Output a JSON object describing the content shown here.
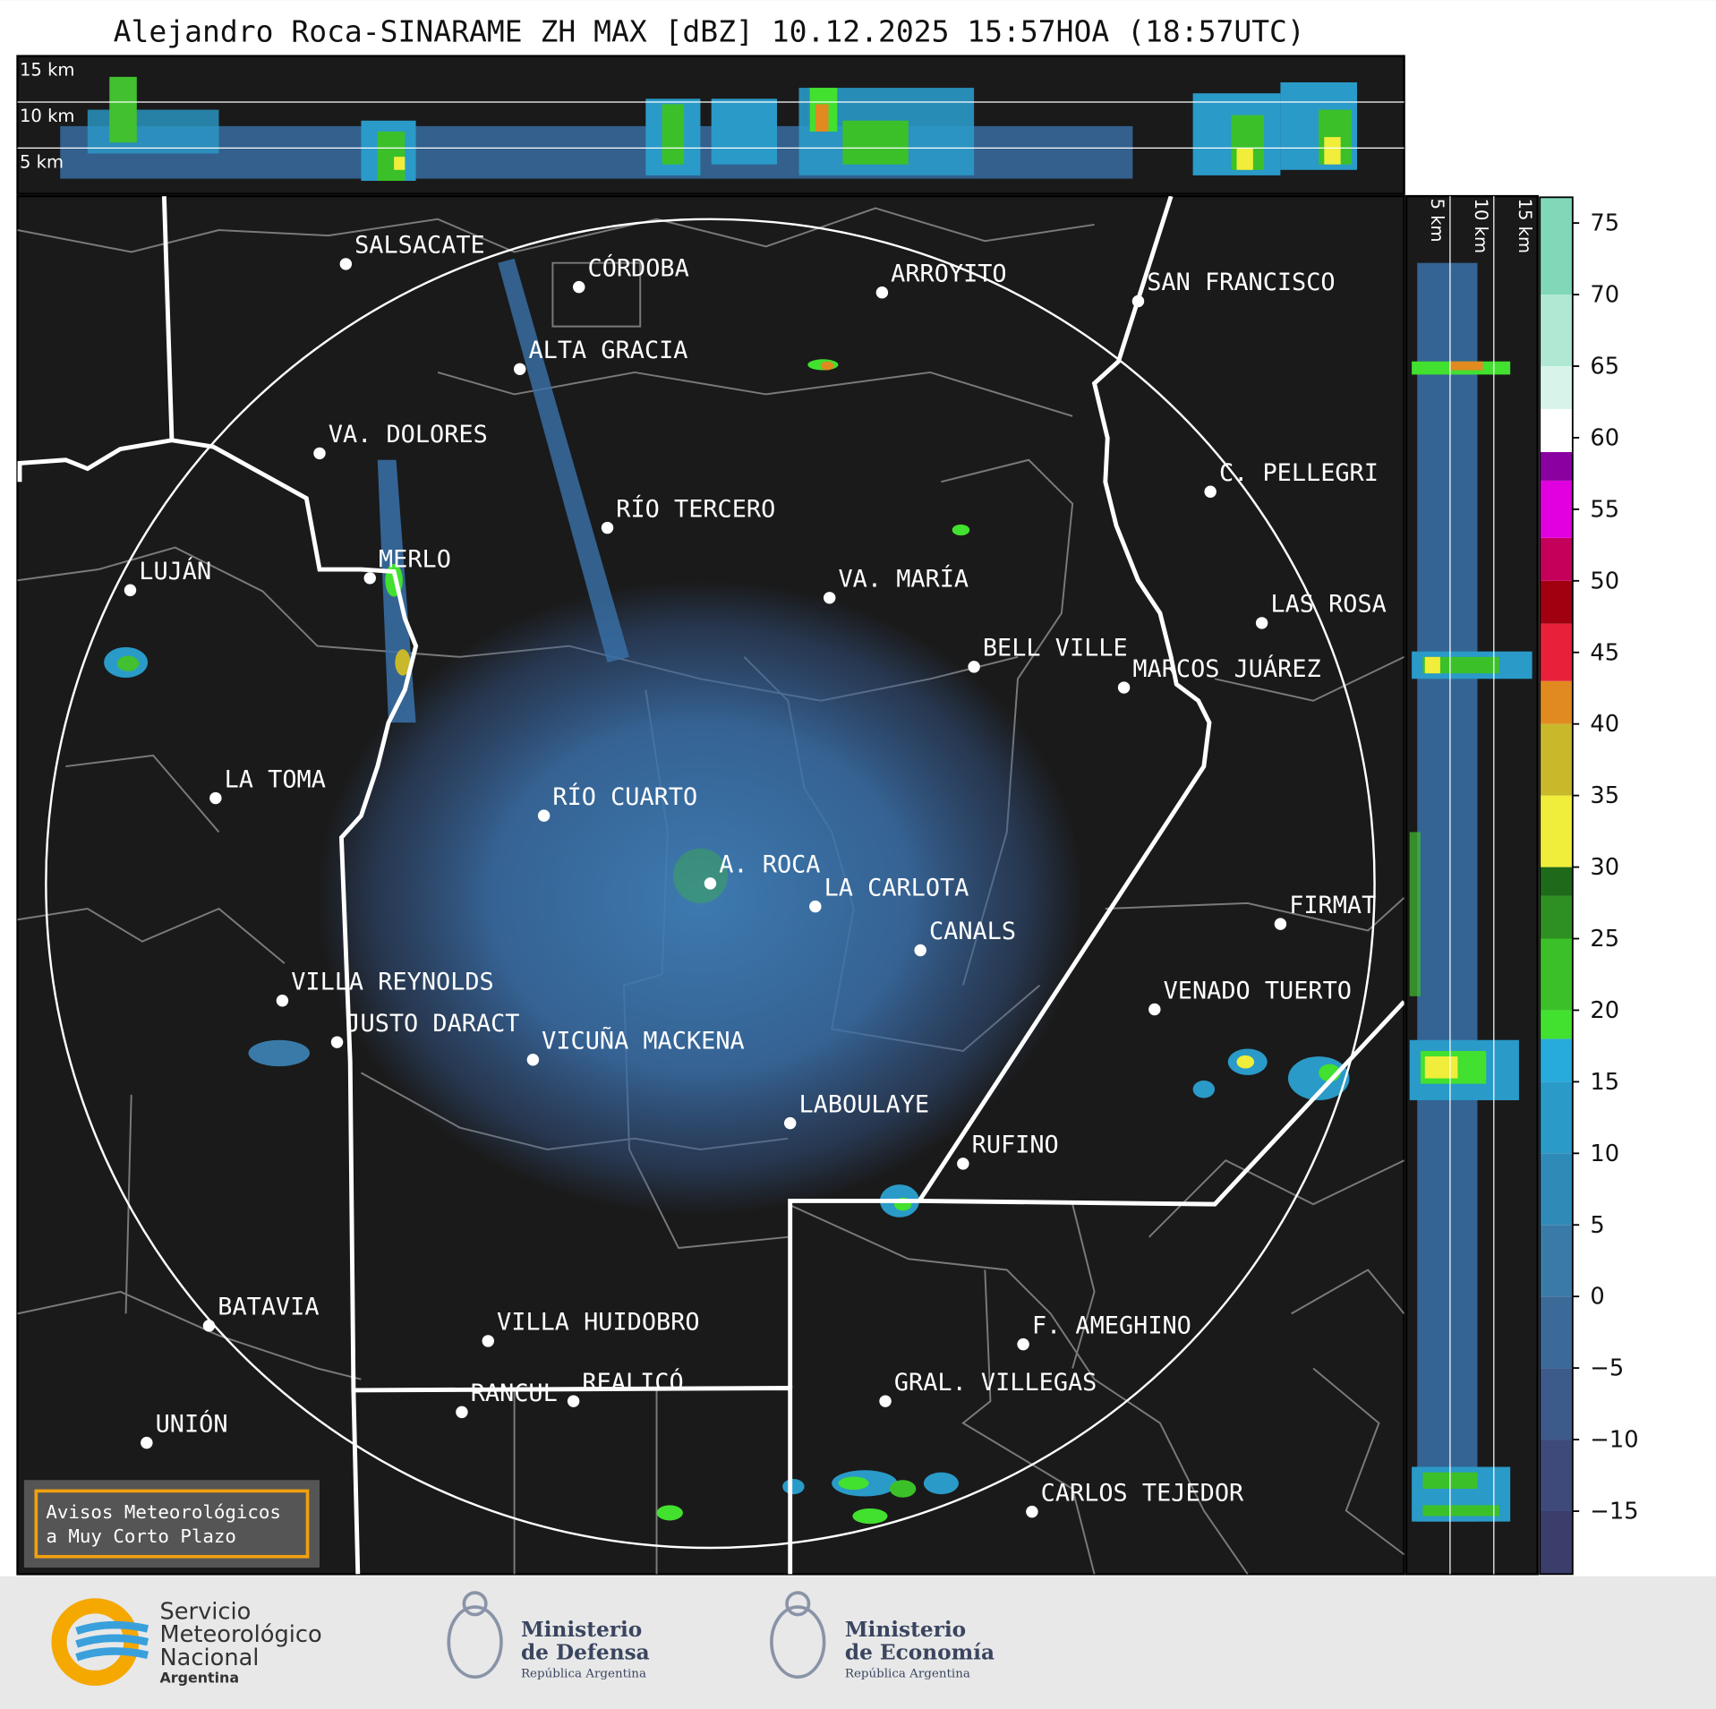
{
  "title": "Alejandro Roca-SINARAME ZH MAX [dBZ] 10.12.2025 15:57HOA (18:57UTC)",
  "top_heights": [
    "15 km",
    "10 km",
    "5 km"
  ],
  "side_heights": [
    "5 km",
    "10 km",
    "15 km"
  ],
  "cities": [
    "SALSACATE",
    "CÓRDOBA",
    "ARROYITO",
    "SAN FRANCISCO",
    "ALTA GRACIA",
    "VA. DOLORES",
    "C. PELLEGRI",
    "RÍO TERCERO",
    "LUJÁN",
    "MERLO",
    "VA. MARÍA",
    "LAS ROSA",
    "BELL VILLE",
    "MARCOS JUÁREZ",
    "LA TOMA",
    "RÍO CUARTO",
    "A. ROCA",
    "LA CARLOTA",
    "FIRMAT",
    "CANALS",
    "VILLA REYNOLDS",
    "VENADO TUERTO",
    "JUSTO DARACT",
    "VICUÑA MACKENA",
    "LABOULAYE",
    "RUFINO",
    "BATAVIA",
    "VILLA HUIDOBRO",
    "F. AMEGHINO",
    "RANCUL",
    "REALICÓ",
    "GRAL. VILLEGAS",
    "UNIÓN",
    "CARLOS TEJEDOR"
  ],
  "colorbar": {
    "range": [
      -19.4,
      76.8
    ],
    "ticks": [
      {
        "value": -15,
        "label": "−15"
      },
      {
        "value": -10,
        "label": "−10"
      },
      {
        "value": -5,
        "label": "−5"
      },
      0,
      5,
      10,
      15,
      20,
      25,
      30,
      35,
      40,
      45,
      50,
      55,
      60,
      65,
      70,
      75
    ],
    "steps": [
      {
        "from": -19.4,
        "color": "#3b3d6b"
      },
      {
        "from": -15,
        "color": "#3d4a7a"
      },
      {
        "from": -10,
        "color": "#3c5a8a"
      },
      {
        "from": -5,
        "color": "#3b6a98"
      },
      {
        "from": 0,
        "color": "#3a7aa8"
      },
      {
        "from": 5,
        "color": "#2f8ab8"
      },
      {
        "from": 10,
        "color": "#2a9ac8"
      },
      {
        "from": 15,
        "color": "#27aadc"
      },
      {
        "from": 18,
        "color": "#42e02f"
      },
      {
        "from": 20,
        "color": "#3cc02a"
      },
      {
        "from": 25,
        "color": "#2e8f22"
      },
      {
        "from": 28,
        "color": "#1f6a1a"
      },
      {
        "from": 30,
        "color": "#f0ee3a"
      },
      {
        "from": 35,
        "color": "#c8b82a"
      },
      {
        "from": 40,
        "color": "#e08a20"
      },
      {
        "from": 43,
        "color": "#e8203a"
      },
      {
        "from": 47,
        "color": "#a00010"
      },
      {
        "from": 50,
        "color": "#c4005a"
      },
      {
        "from": 53,
        "color": "#e000e0"
      },
      {
        "from": 57,
        "color": "#8a00a0"
      },
      {
        "from": 59,
        "color": "#ffffff"
      },
      {
        "from": 62,
        "color": "#d8f4ea"
      },
      {
        "from": 65,
        "color": "#b0e8d4"
      },
      {
        "from": 70,
        "color": "#80d8b8"
      }
    ]
  },
  "warning": [
    "Avisos Meteorológicos",
    "a Muy Corto Plazo"
  ],
  "footer": {
    "smn": [
      "Servicio",
      "Meteorológico",
      "Nacional",
      "Argentina"
    ],
    "defensa": [
      "Ministerio",
      "de Defensa",
      "República Argentina"
    ],
    "economia": [
      "Ministerio",
      "de Economía",
      "República Argentina"
    ]
  }
}
